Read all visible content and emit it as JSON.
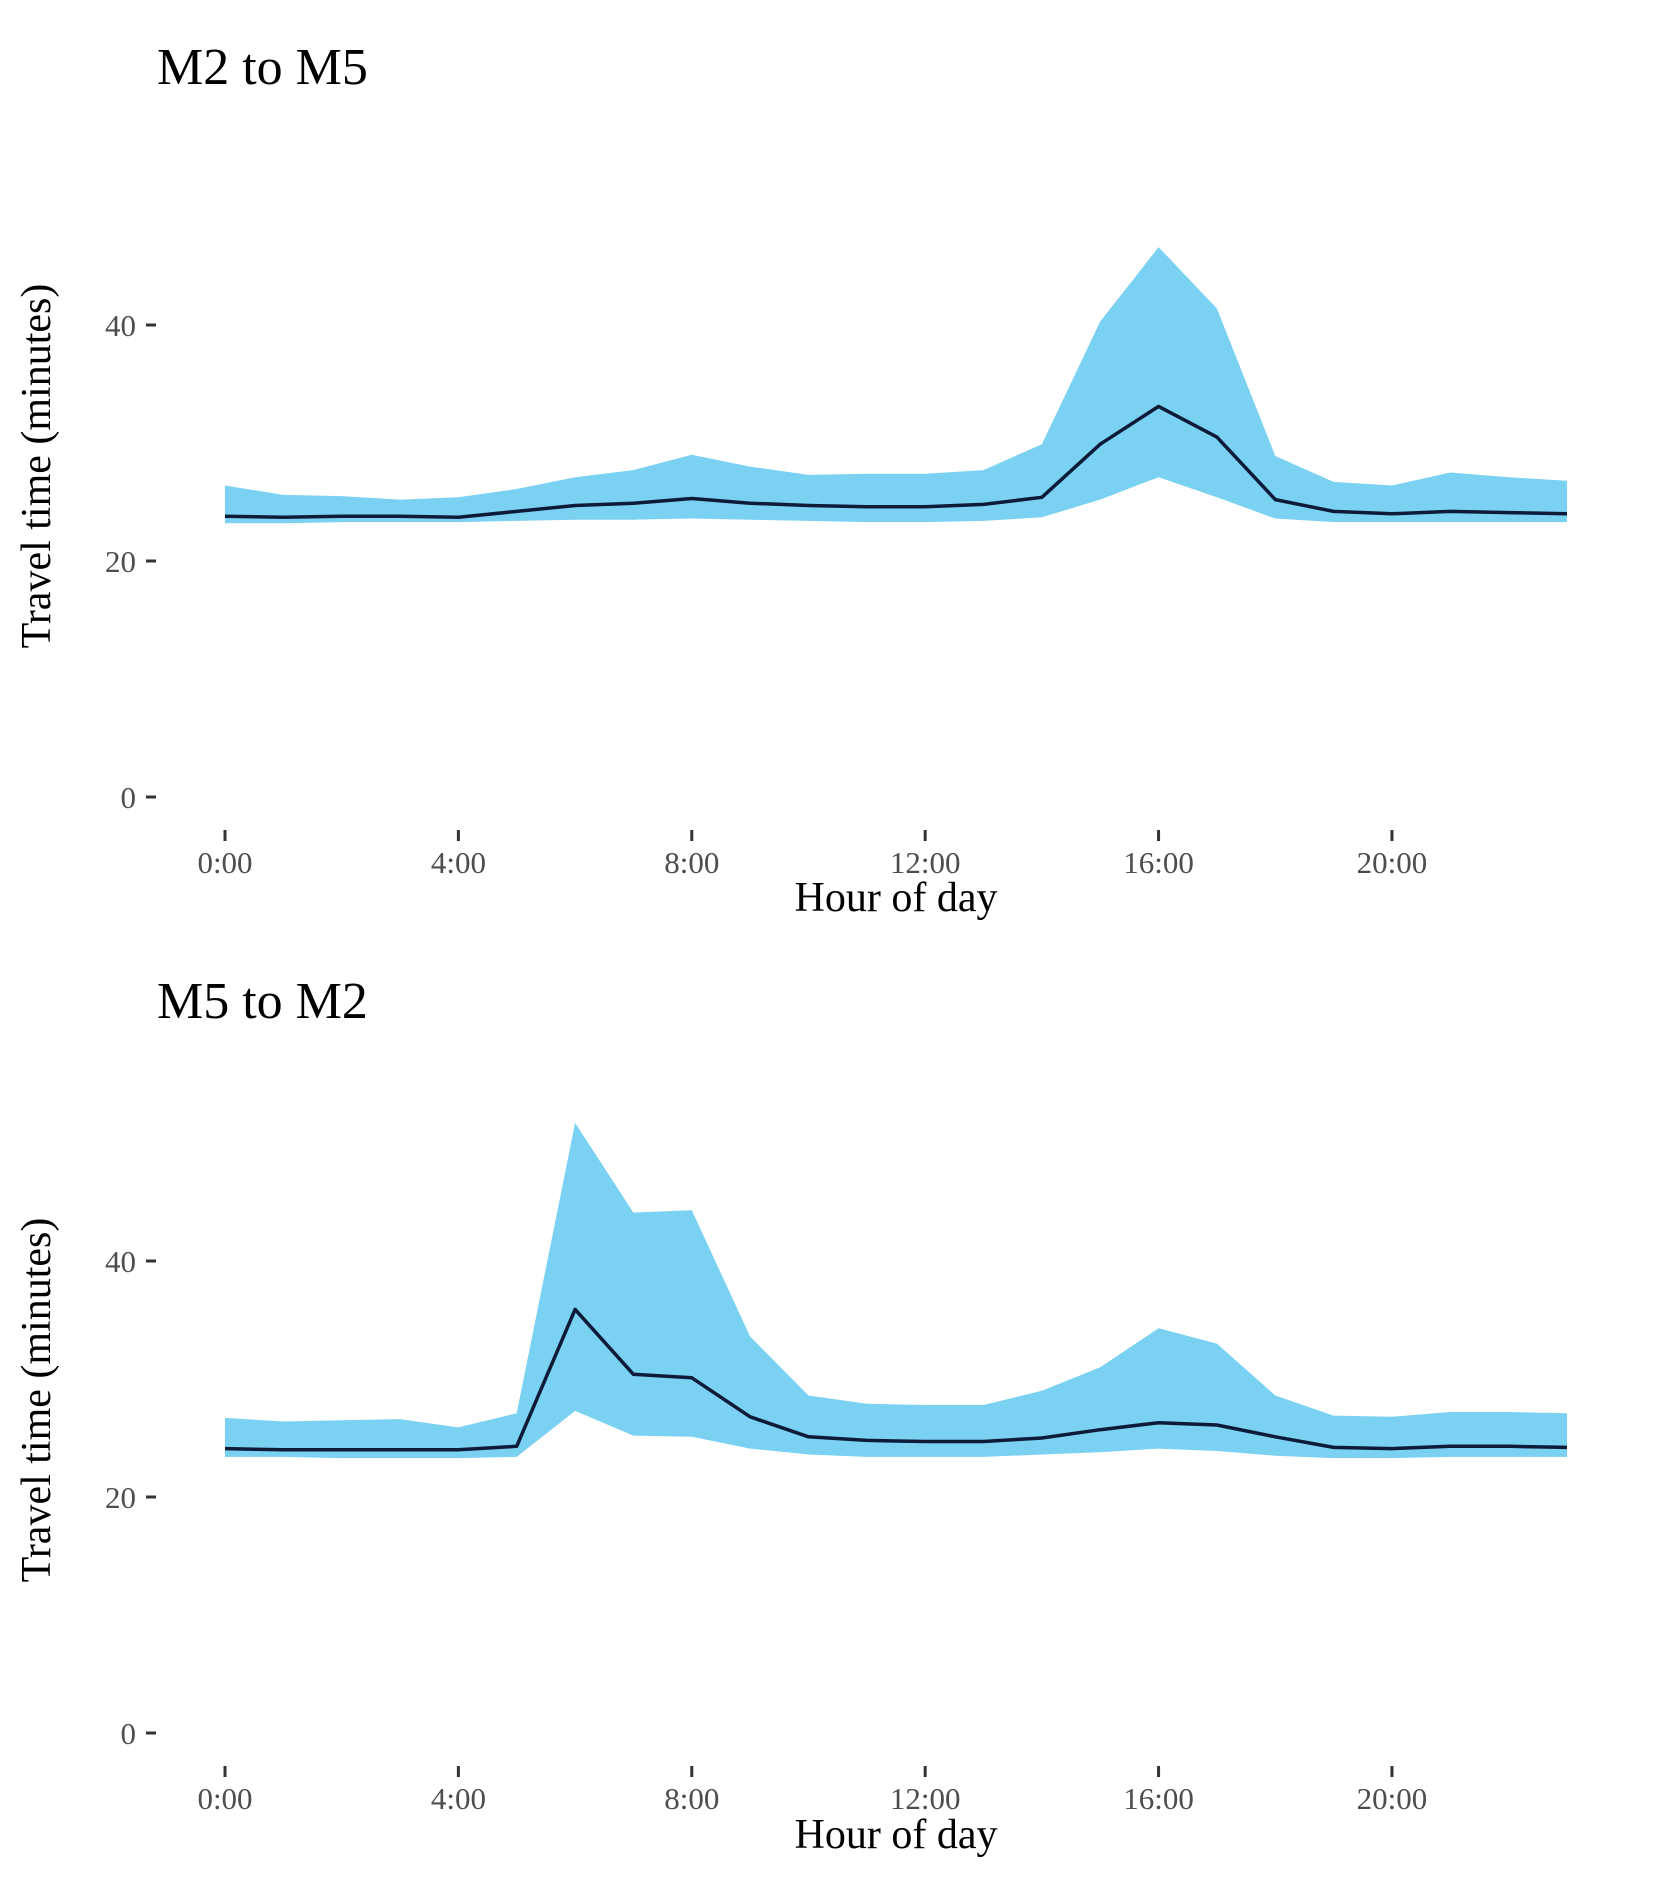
{
  "colors": {
    "band": "#7AD1F2",
    "line": "#0D1B38",
    "tick": "#333333",
    "tick_label": "#4d4d4d",
    "text": "#000000"
  },
  "chart_data": [
    {
      "type": "area",
      "title": "M2 to M5",
      "xlabel": "Hour of day",
      "ylabel": "Travel time (minutes)",
      "xlim": [
        0,
        23
      ],
      "ylim": [
        0,
        50
      ],
      "x_ticks": [
        {
          "value": 0,
          "label": "0:00"
        },
        {
          "value": 4,
          "label": "4:00"
        },
        {
          "value": 8,
          "label": "8:00"
        },
        {
          "value": 12,
          "label": "12:00"
        },
        {
          "value": 16,
          "label": "16:00"
        },
        {
          "value": 20,
          "label": "20:00"
        }
      ],
      "y_ticks": [
        {
          "value": 0,
          "label": "0"
        },
        {
          "value": 20,
          "label": "20"
        },
        {
          "value": 40,
          "label": "40"
        }
      ],
      "grid": false,
      "x": [
        0,
        1,
        2,
        3,
        4,
        5,
        6,
        7,
        8,
        9,
        10,
        11,
        12,
        13,
        14,
        15,
        16,
        17,
        18,
        19,
        20,
        21,
        22,
        23
      ],
      "series": [
        {
          "role": "upper",
          "values": [
            26.4,
            25.6,
            25.5,
            25.2,
            25.4,
            26.1,
            27.1,
            27.7,
            29.0,
            28.0,
            27.3,
            27.4,
            27.4,
            27.7,
            29.9,
            40.3,
            46.6,
            41.4,
            28.9,
            26.7,
            26.4,
            27.5,
            27.1,
            26.8
          ]
        },
        {
          "role": "median",
          "values": [
            23.8,
            23.7,
            23.8,
            23.8,
            23.7,
            24.2,
            24.7,
            24.9,
            25.3,
            24.9,
            24.7,
            24.6,
            24.6,
            24.8,
            25.4,
            29.9,
            33.1,
            30.5,
            25.2,
            24.2,
            24.0,
            24.2,
            24.1,
            24.0
          ]
        },
        {
          "role": "lower",
          "values": [
            23.2,
            23.2,
            23.3,
            23.3,
            23.3,
            23.4,
            23.5,
            23.5,
            23.6,
            23.5,
            23.4,
            23.3,
            23.3,
            23.4,
            23.7,
            25.2,
            27.1,
            25.4,
            23.6,
            23.3,
            23.3,
            23.3,
            23.3,
            23.3
          ]
        }
      ]
    },
    {
      "type": "area",
      "title": "M5 to M2",
      "xlabel": "Hour of day",
      "ylabel": "Travel time (minutes)",
      "xlim": [
        0,
        23
      ],
      "ylim": [
        0,
        50
      ],
      "x_ticks": [
        {
          "value": 0,
          "label": "0:00"
        },
        {
          "value": 4,
          "label": "4:00"
        },
        {
          "value": 8,
          "label": "8:00"
        },
        {
          "value": 12,
          "label": "12:00"
        },
        {
          "value": 16,
          "label": "16:00"
        },
        {
          "value": 20,
          "label": "20:00"
        }
      ],
      "y_ticks": [
        {
          "value": 0,
          "label": "0"
        },
        {
          "value": 20,
          "label": "20"
        },
        {
          "value": 40,
          "label": "40"
        }
      ],
      "grid": false,
      "x": [
        0,
        1,
        2,
        3,
        4,
        5,
        6,
        7,
        8,
        9,
        10,
        11,
        12,
        13,
        14,
        15,
        16,
        17,
        18,
        19,
        20,
        21,
        22,
        23
      ],
      "series": [
        {
          "role": "upper",
          "values": [
            26.7,
            26.4,
            26.5,
            26.6,
            25.9,
            27.1,
            51.7,
            44.1,
            44.3,
            33.6,
            28.6,
            27.9,
            27.8,
            27.8,
            29.0,
            31.0,
            34.3,
            33.0,
            28.6,
            26.9,
            26.8,
            27.2,
            27.2,
            27.1
          ]
        },
        {
          "role": "median",
          "values": [
            24.1,
            24.0,
            24.0,
            24.0,
            24.0,
            24.3,
            35.9,
            30.4,
            30.1,
            26.8,
            25.1,
            24.8,
            24.7,
            24.7,
            25.0,
            25.7,
            26.3,
            26.1,
            25.1,
            24.2,
            24.1,
            24.3,
            24.3,
            24.2
          ]
        },
        {
          "role": "lower",
          "values": [
            23.4,
            23.4,
            23.3,
            23.3,
            23.3,
            23.4,
            27.3,
            25.2,
            25.1,
            24.1,
            23.6,
            23.4,
            23.4,
            23.4,
            23.6,
            23.8,
            24.1,
            23.9,
            23.5,
            23.3,
            23.3,
            23.4,
            23.4,
            23.4
          ]
        }
      ]
    }
  ]
}
